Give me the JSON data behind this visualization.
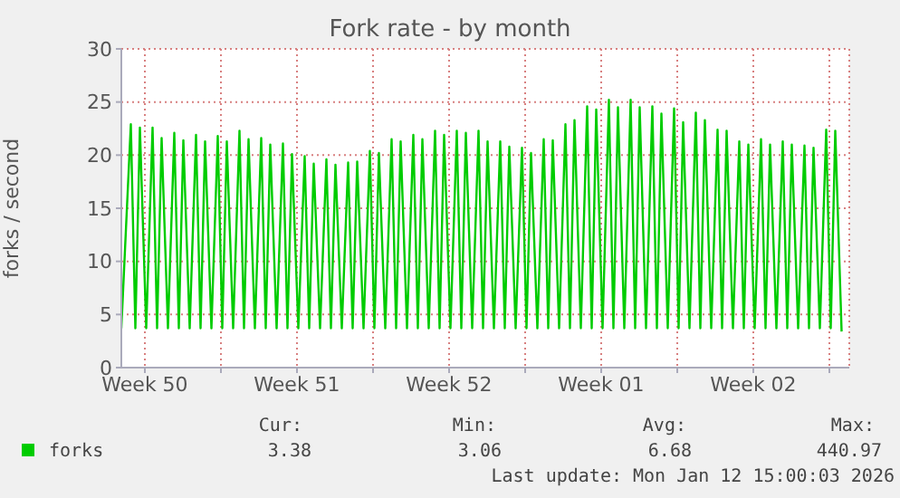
{
  "chart_data": {
    "type": "line",
    "title": "Fork rate - by month",
    "ylabel": "forks / second",
    "x": [
      "2025-12-10T10:00",
      "2025-12-10T20:30",
      "2025-12-11T01:30",
      "2025-12-11T06:30",
      "2025-12-11T13:30",
      "2025-12-11T20:30",
      "2025-12-12T01:30",
      "2025-12-12T06:30",
      "2025-12-12T13:30",
      "2025-12-12T20:30",
      "2025-12-13T01:30",
      "2025-12-13T06:30",
      "2025-12-13T13:30",
      "2025-12-13T20:30",
      "2025-12-14T01:30",
      "2025-12-14T06:30",
      "2025-12-14T13:30",
      "2025-12-14T20:30",
      "2025-12-15T01:30",
      "2025-12-15T06:30",
      "2025-12-15T13:30",
      "2025-12-15T20:30",
      "2025-12-16T01:30",
      "2025-12-16T06:30",
      "2025-12-16T13:30",
      "2025-12-16T20:30",
      "2025-12-17T01:30",
      "2025-12-17T06:30",
      "2025-12-17T13:30",
      "2025-12-17T20:30",
      "2025-12-18T01:30",
      "2025-12-18T06:30",
      "2025-12-18T13:30",
      "2025-12-18T20:30",
      "2025-12-19T01:30",
      "2025-12-19T06:30",
      "2025-12-19T13:30",
      "2025-12-19T20:30",
      "2025-12-20T01:30",
      "2025-12-20T06:30",
      "2025-12-20T13:30",
      "2025-12-20T20:30",
      "2025-12-21T01:30",
      "2025-12-21T06:30",
      "2025-12-21T13:30",
      "2025-12-21T20:30",
      "2025-12-22T01:30",
      "2025-12-22T06:30",
      "2025-12-22T13:30",
      "2025-12-22T20:30",
      "2025-12-23T01:30",
      "2025-12-23T06:30",
      "2025-12-23T13:30",
      "2025-12-23T20:30",
      "2025-12-24T01:30",
      "2025-12-24T06:30",
      "2025-12-24T13:30",
      "2025-12-24T20:30",
      "2025-12-25T01:30",
      "2025-12-25T06:30",
      "2025-12-25T13:30",
      "2025-12-25T20:30",
      "2025-12-26T01:30",
      "2025-12-26T06:30",
      "2025-12-26T13:30",
      "2025-12-26T20:30",
      "2025-12-27T01:30",
      "2025-12-27T06:30",
      "2025-12-27T13:30",
      "2025-12-27T20:30",
      "2025-12-28T01:30",
      "2025-12-28T06:30",
      "2025-12-28T13:30",
      "2025-12-28T20:30",
      "2025-12-29T01:30",
      "2025-12-29T06:30",
      "2025-12-29T13:30",
      "2025-12-29T20:30",
      "2025-12-30T01:30",
      "2025-12-30T06:30",
      "2025-12-30T13:30",
      "2025-12-30T20:30",
      "2025-12-31T01:30",
      "2025-12-31T06:30",
      "2025-12-31T13:30",
      "2025-12-31T20:30",
      "2026-01-01T01:30",
      "2026-01-01T06:30",
      "2026-01-01T13:30",
      "2026-01-01T20:30",
      "2026-01-02T01:30",
      "2026-01-02T06:30",
      "2026-01-02T13:30",
      "2026-01-02T20:30",
      "2026-01-03T01:30",
      "2026-01-03T06:30",
      "2026-01-03T13:30",
      "2026-01-03T20:30",
      "2026-01-04T01:30",
      "2026-01-04T06:30",
      "2026-01-04T13:30",
      "2026-01-04T20:30",
      "2026-01-05T01:30",
      "2026-01-05T06:30",
      "2026-01-05T13:30",
      "2026-01-05T20:30",
      "2026-01-06T01:30",
      "2026-01-06T06:30",
      "2026-01-06T13:30",
      "2026-01-06T20:30",
      "2026-01-07T01:30",
      "2026-01-07T06:30",
      "2026-01-07T13:30",
      "2026-01-07T20:30",
      "2026-01-08T01:30",
      "2026-01-08T06:30",
      "2026-01-08T13:30",
      "2026-01-08T20:30",
      "2026-01-09T01:30",
      "2026-01-09T06:30",
      "2026-01-09T13:30",
      "2026-01-09T20:30",
      "2026-01-10T01:30",
      "2026-01-10T06:30",
      "2026-01-10T13:30",
      "2026-01-10T20:30",
      "2026-01-11T01:30",
      "2026-01-11T06:30",
      "2026-01-11T13:30",
      "2026-01-11T20:30",
      "2026-01-12T01:30",
      "2026-01-12T06:30",
      "2026-01-12T13:30"
    ],
    "series": [
      {
        "name": "forks",
        "color": "#00cc00",
        "values": [
          3.7,
          22.9,
          3.7,
          22.6,
          3.7,
          22.6,
          3.7,
          21.6,
          3.7,
          22.1,
          3.7,
          21.4,
          3.7,
          21.9,
          3.7,
          21.3,
          3.7,
          21.8,
          3.7,
          21.3,
          3.7,
          22.3,
          3.7,
          21.5,
          3.7,
          21.6,
          3.7,
          21.0,
          3.7,
          21.1,
          3.7,
          20.1,
          3.7,
          19.9,
          3.7,
          19.2,
          3.7,
          19.6,
          3.7,
          19.1,
          3.7,
          19.3,
          3.7,
          19.4,
          3.7,
          20.4,
          3.7,
          20.2,
          3.7,
          21.5,
          3.7,
          21.3,
          3.7,
          21.9,
          3.7,
          21.5,
          3.7,
          22.3,
          3.7,
          21.9,
          3.7,
          22.3,
          3.7,
          22.1,
          3.7,
          22.3,
          3.7,
          21.3,
          3.7,
          21.3,
          3.7,
          20.8,
          3.7,
          20.7,
          3.7,
          20.2,
          3.7,
          21.5,
          3.7,
          21.4,
          3.7,
          22.9,
          3.7,
          23.3,
          3.7,
          24.6,
          3.7,
          24.3,
          3.7,
          25.2,
          3.7,
          24.5,
          3.7,
          25.2,
          3.7,
          24.5,
          3.7,
          24.6,
          3.7,
          23.9,
          3.7,
          24.4,
          3.7,
          23.1,
          3.7,
          24.0,
          3.7,
          23.3,
          3.7,
          22.4,
          3.7,
          22.3,
          3.7,
          21.3,
          3.7,
          21.0,
          3.7,
          21.5,
          3.7,
          21.0,
          3.7,
          21.3,
          3.7,
          21.0,
          3.7,
          20.9,
          3.7,
          20.7,
          3.7,
          22.4,
          3.7,
          22.3,
          3.4
        ]
      }
    ],
    "xlim": [
      "2025-12-10T10:00",
      "2026-01-12T22:00"
    ],
    "xticks": [
      {
        "value": "2025-12-11T12:00",
        "label": "Week 50"
      },
      {
        "value": "2025-12-15",
        "label": null
      },
      {
        "value": "2025-12-18T12:00",
        "label": "Week 51"
      },
      {
        "value": "2025-12-22",
        "label": null
      },
      {
        "value": "2025-12-25T12:00",
        "label": "Week 52"
      },
      {
        "value": "2025-12-29",
        "label": null
      },
      {
        "value": "2026-01-01T12:00",
        "label": "Week 01"
      },
      {
        "value": "2026-01-05",
        "label": null
      },
      {
        "value": "2026-01-08T12:00",
        "label": "Week 02"
      },
      {
        "value": "2026-01-12",
        "label": null
      }
    ],
    "ylim": [
      0,
      30
    ],
    "yticks": [
      0,
      5,
      10,
      15,
      20,
      25,
      30
    ],
    "grid": true,
    "legend": "bottom",
    "marker": "none",
    "line_style": "solid",
    "annotations": [
      "Cur:",
      "Min:",
      "Avg:",
      "Max:",
      "3.38",
      "3.06",
      "6.68",
      "440.97",
      "Last update: Mon Jan 12 15:00:03 2026"
    ]
  }
}
